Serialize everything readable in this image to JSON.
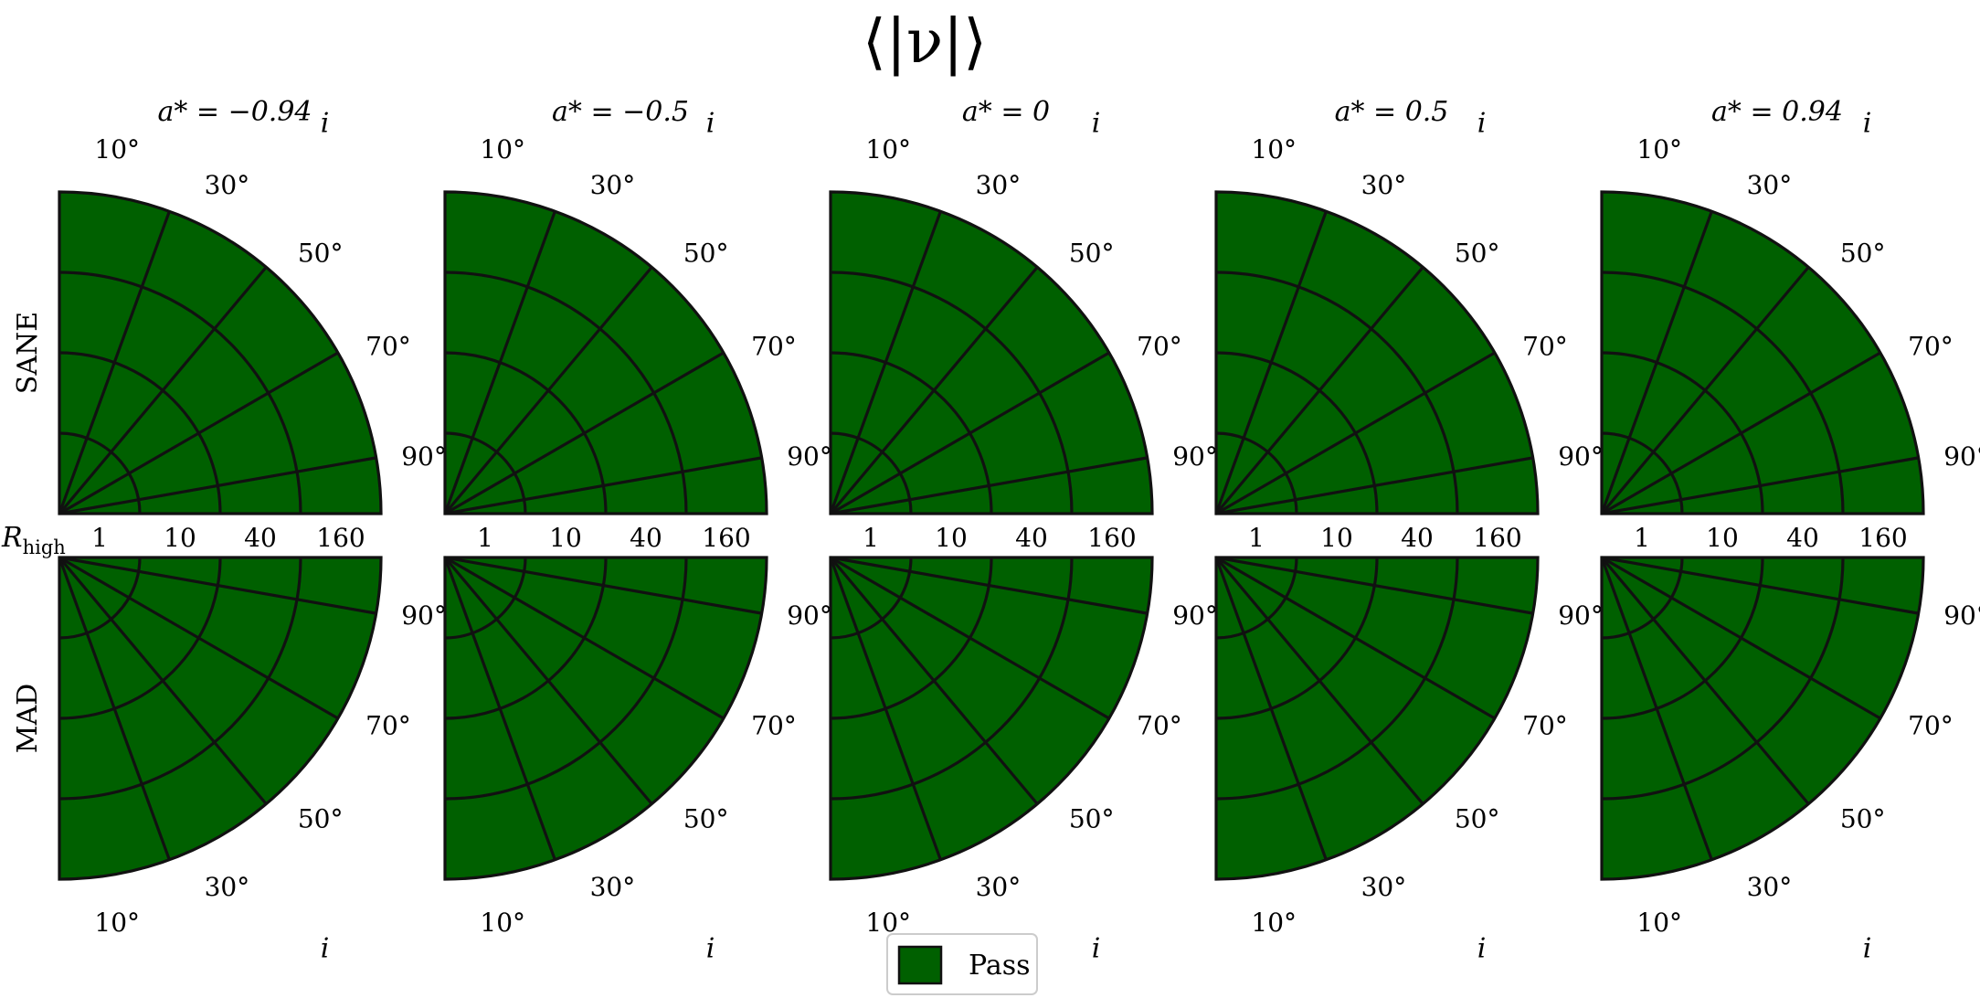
{
  "chart_data": {
    "type": "polar-grid",
    "title": "⟨|ν|⟩",
    "columns": [
      {
        "label": "a* = −0.94",
        "spin": -0.94
      },
      {
        "label": "a* = −0.5",
        "spin": -0.5
      },
      {
        "label": "a* = 0",
        "spin": 0
      },
      {
        "label": "a* = 0.5",
        "spin": 0.5
      },
      {
        "label": "a* = 0.94",
        "spin": 0.94
      }
    ],
    "rows": [
      {
        "label": "SANE",
        "orientation": "upper"
      },
      {
        "label": "MAD",
        "orientation": "lower"
      }
    ],
    "inclination": {
      "name": "i",
      "values": [
        10,
        30,
        50,
        70,
        90
      ],
      "tick_labels": [
        "10°",
        "30°",
        "50°",
        "70°",
        "90°"
      ]
    },
    "r_high": {
      "name": "R",
      "subscript": "high",
      "values": [
        1,
        10,
        40,
        160
      ],
      "tick_labels": [
        "1",
        "10",
        "40",
        "160"
      ]
    },
    "cells_status": "Pass",
    "legend": [
      {
        "label": "Pass",
        "color": "#006000"
      }
    ],
    "colors": {
      "pass": "#006000",
      "grid": "#111111"
    }
  }
}
